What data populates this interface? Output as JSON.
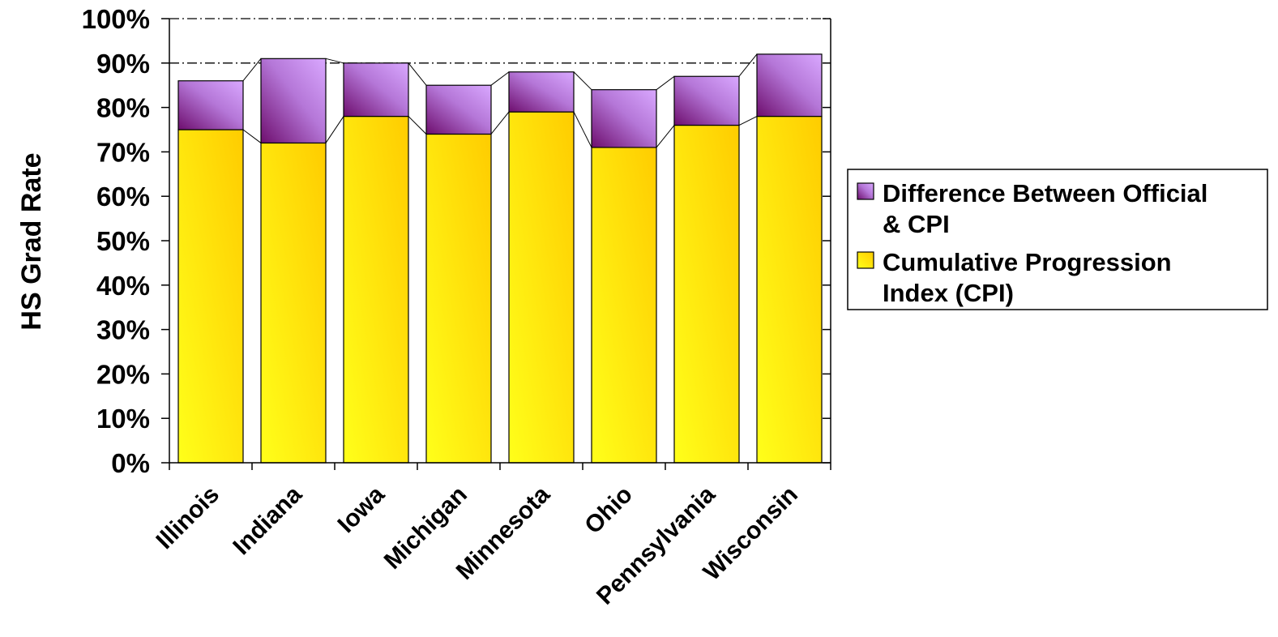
{
  "chart_data": {
    "type": "bar",
    "stacked": true,
    "ylabel": "HS Grad Rate",
    "xlabel": "",
    "ylim": [
      0,
      100
    ],
    "y_ticks": [
      "0%",
      "10%",
      "20%",
      "30%",
      "40%",
      "50%",
      "60%",
      "70%",
      "80%",
      "90%",
      "100%"
    ],
    "categories": [
      "Illinois",
      "Indiana",
      "Iowa",
      "Michigan",
      "Minnesota",
      "Ohio",
      "Pennsylvania",
      "Wisconsin"
    ],
    "series": [
      {
        "name": "Cumulative Progression Index (CPI)",
        "values": [
          75,
          72,
          78,
          74,
          79,
          71,
          76,
          78
        ],
        "color": "#FFD700"
      },
      {
        "name": "Difference Between Official & CPI",
        "values": [
          11,
          19,
          12,
          11,
          9,
          13,
          11,
          14
        ],
        "color": "#B57EDC"
      }
    ],
    "reference_line": 90,
    "grid": "dash-dot horizontal at 90% and 100%",
    "legend_position": "right",
    "legend": [
      {
        "lines": [
          "Difference Between Official",
          "& CPI"
        ],
        "color": "#B57EDC"
      },
      {
        "lines": [
          "Cumulative Progression",
          "Index (CPI)"
        ],
        "color": "#FFD700"
      }
    ]
  }
}
